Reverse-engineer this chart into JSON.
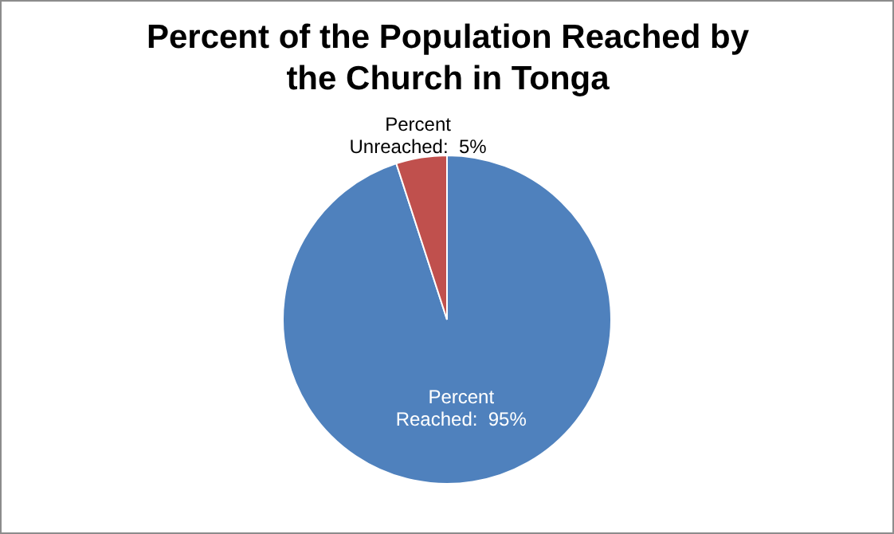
{
  "chart_data": {
    "type": "pie",
    "title": "Percent of the Population Reached by the Church in Tonga",
    "categories": [
      "Percent Reached",
      "Percent Unreached"
    ],
    "values": [
      95,
      5
    ],
    "colors": [
      "#4f81bd",
      "#c0504d"
    ],
    "value_labels": [
      "95%",
      "5%"
    ],
    "legend": false
  }
}
